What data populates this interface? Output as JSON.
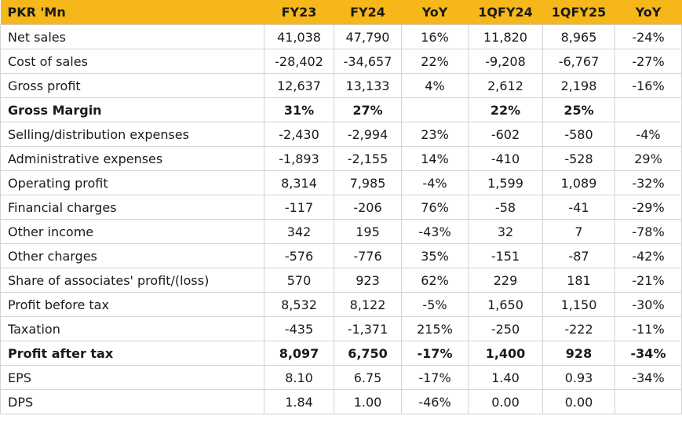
{
  "table": {
    "headers": [
      "PKR 'Mn",
      "FY23",
      "FY24",
      "YoY",
      "1QFY24",
      "1QFY25",
      "YoY"
    ],
    "rows": [
      {
        "label": "Net sales",
        "bold": false,
        "values": [
          "41,038",
          "47,790",
          "16%",
          "11,820",
          "8,965",
          "-24%"
        ]
      },
      {
        "label": "Cost of sales",
        "bold": false,
        "values": [
          "-28,402",
          "-34,657",
          "22%",
          "-9,208",
          "-6,767",
          "-27%"
        ]
      },
      {
        "label": "Gross profit",
        "bold": false,
        "values": [
          "12,637",
          "13,133",
          "4%",
          "2,612",
          "2,198",
          "-16%"
        ]
      },
      {
        "label": "Gross Margin",
        "bold": true,
        "values": [
          "31%",
          "27%",
          "",
          "22%",
          "25%",
          ""
        ]
      },
      {
        "label": "Selling/distribution expenses",
        "bold": false,
        "values": [
          "-2,430",
          "-2,994",
          "23%",
          "-602",
          "-580",
          "-4%"
        ]
      },
      {
        "label": "Administrative expenses",
        "bold": false,
        "values": [
          "-1,893",
          "-2,155",
          "14%",
          "-410",
          "-528",
          "29%"
        ]
      },
      {
        "label": "Operating profit",
        "bold": false,
        "values": [
          "8,314",
          "7,985",
          "-4%",
          "1,599",
          "1,089",
          "-32%"
        ]
      },
      {
        "label": "Financial charges",
        "bold": false,
        "values": [
          "-117",
          "-206",
          "76%",
          "-58",
          "-41",
          "-29%"
        ]
      },
      {
        "label": "Other income",
        "bold": false,
        "values": [
          "342",
          "195",
          "-43%",
          "32",
          "7",
          "-78%"
        ]
      },
      {
        "label": "Other charges",
        "bold": false,
        "values": [
          "-576",
          "-776",
          "35%",
          "-151",
          "-87",
          "-42%"
        ]
      },
      {
        "label": "Share of associates' profit/(loss)",
        "bold": false,
        "values": [
          "570",
          "923",
          "62%",
          "229",
          "181",
          "-21%"
        ]
      },
      {
        "label": "Profit before tax",
        "bold": false,
        "values": [
          "8,532",
          "8,122",
          "-5%",
          "1,650",
          "1,150",
          "-30%"
        ]
      },
      {
        "label": "Taxation",
        "bold": false,
        "values": [
          "-435",
          "-1,371",
          "215%",
          "-250",
          "-222",
          "-11%"
        ]
      },
      {
        "label": "Profit after tax",
        "bold": true,
        "values": [
          "8,097",
          "6,750",
          "-17%",
          "1,400",
          "928",
          "-34%"
        ]
      },
      {
        "label": "EPS",
        "bold": false,
        "values": [
          "8.10",
          "6.75",
          "-17%",
          "1.40",
          "0.93",
          "-34%"
        ]
      },
      {
        "label": "DPS",
        "bold": false,
        "values": [
          "1.84",
          "1.00",
          "-46%",
          "0.00",
          "0.00",
          ""
        ]
      }
    ]
  },
  "colors": {
    "header_bg": "#f5b71a",
    "grid": "#d3d3d3",
    "text": "#1a1a1a"
  }
}
